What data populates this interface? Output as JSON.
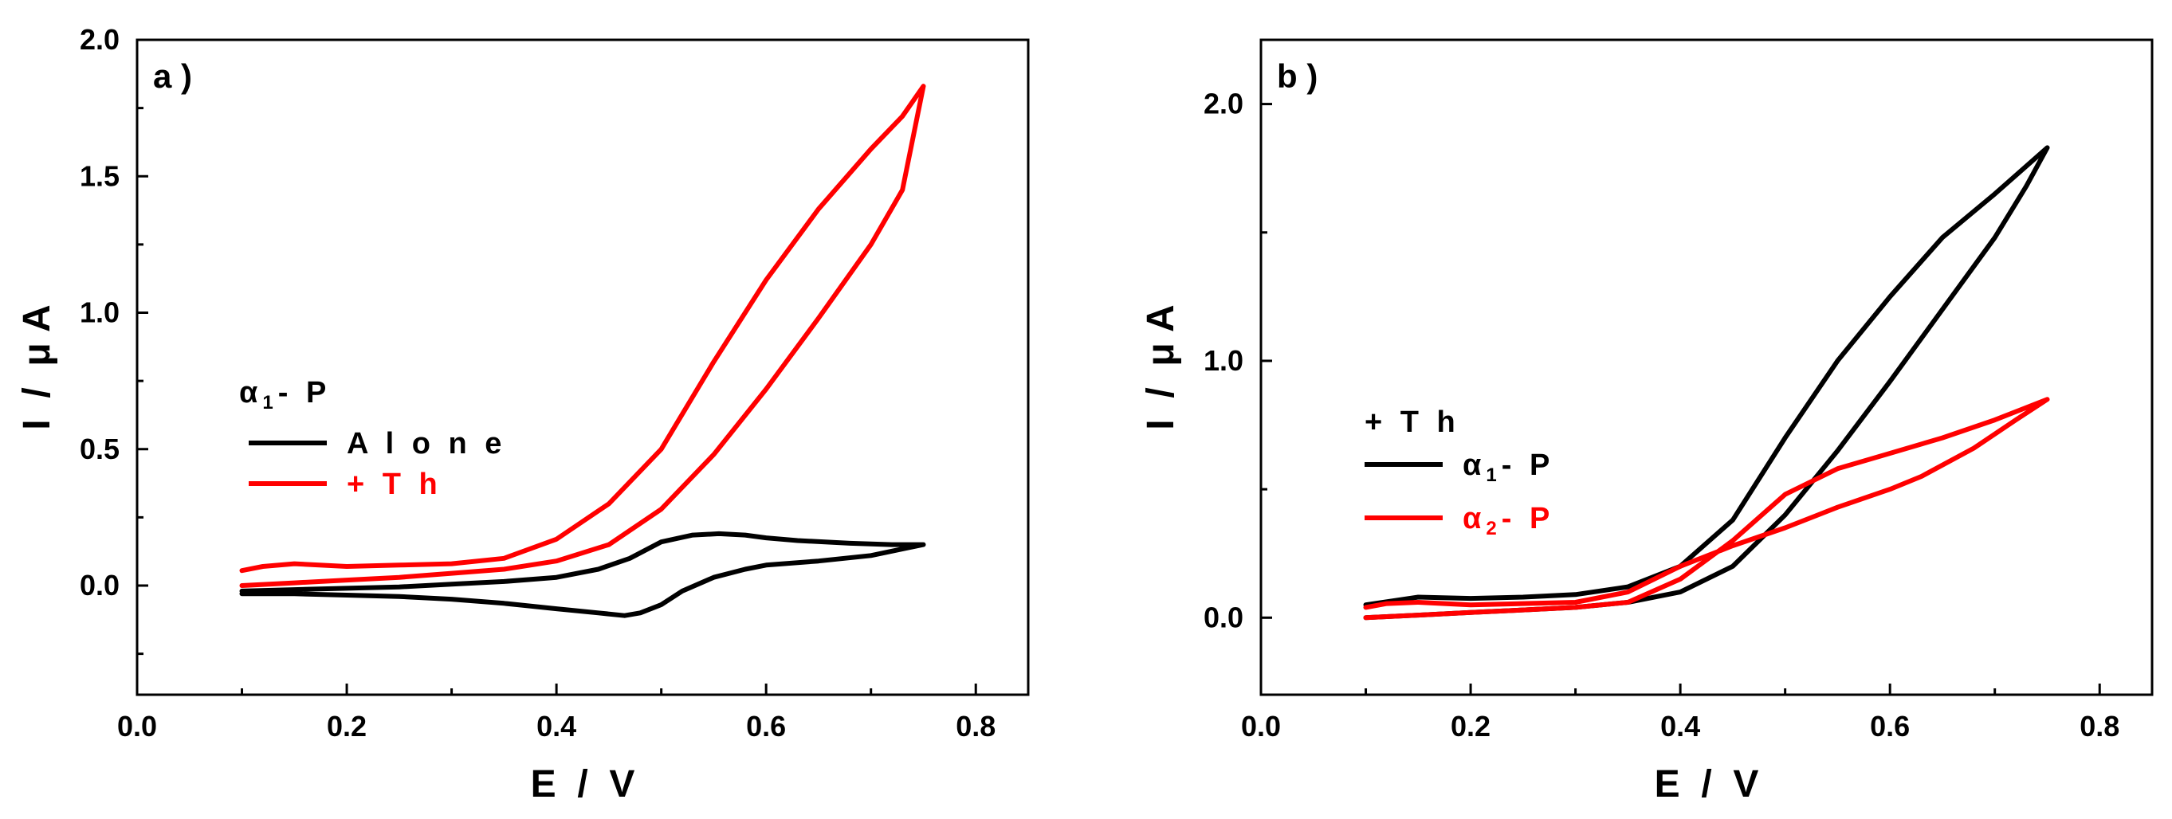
{
  "chart_data": [
    {
      "type": "line",
      "panel_label": "a )",
      "xlabel": "E  /  V",
      "ylabel": "I  /  μ A",
      "xlim": [
        0.0,
        0.85
      ],
      "ylim": [
        -0.4,
        2.0
      ],
      "x_ticks": [
        0.0,
        0.2,
        0.4,
        0.6,
        0.8
      ],
      "x_tick_labels": [
        "0.0",
        "0.2",
        "0.4",
        "0.6",
        "0.8"
      ],
      "y_ticks": [
        0.0,
        0.5,
        1.0,
        1.5,
        2.0
      ],
      "y_tick_labels": [
        "0.0",
        "0.5",
        "1.0",
        "1.5",
        "2.0"
      ],
      "legend": {
        "title": {
          "greek": "α",
          "sub": "1",
          "rest": "- P"
        },
        "entries": [
          {
            "label": "A l o n e",
            "color": "#000000"
          },
          {
            "label": "+ T h",
            "color": "#ff0000"
          }
        ]
      },
      "series": [
        {
          "name": "Alone",
          "color": "#000000",
          "points": [
            [
              0.1,
              -0.03
            ],
            [
              0.15,
              -0.03
            ],
            [
              0.2,
              -0.035
            ],
            [
              0.25,
              -0.04
            ],
            [
              0.3,
              -0.05
            ],
            [
              0.35,
              -0.065
            ],
            [
              0.4,
              -0.085
            ],
            [
              0.44,
              -0.1
            ],
            [
              0.465,
              -0.11
            ],
            [
              0.48,
              -0.1
            ],
            [
              0.5,
              -0.07
            ],
            [
              0.52,
              -0.02
            ],
            [
              0.55,
              0.03
            ],
            [
              0.58,
              0.06
            ],
            [
              0.6,
              0.075
            ],
            [
              0.65,
              0.09
            ],
            [
              0.7,
              0.11
            ],
            [
              0.75,
              0.15
            ],
            [
              0.72,
              0.15
            ],
            [
              0.68,
              0.155
            ],
            [
              0.63,
              0.165
            ],
            [
              0.6,
              0.175
            ],
            [
              0.58,
              0.185
            ],
            [
              0.555,
              0.19
            ],
            [
              0.53,
              0.185
            ],
            [
              0.5,
              0.16
            ],
            [
              0.47,
              0.1
            ],
            [
              0.44,
              0.06
            ],
            [
              0.4,
              0.03
            ],
            [
              0.35,
              0.015
            ],
            [
              0.3,
              0.005
            ],
            [
              0.25,
              -0.005
            ],
            [
              0.2,
              -0.01
            ],
            [
              0.15,
              -0.015
            ],
            [
              0.1,
              -0.02
            ]
          ]
        },
        {
          "name": "+ Th",
          "color": "#ff0000",
          "points": [
            [
              0.1,
              0.0
            ],
            [
              0.15,
              0.01
            ],
            [
              0.2,
              0.02
            ],
            [
              0.25,
              0.03
            ],
            [
              0.3,
              0.045
            ],
            [
              0.35,
              0.06
            ],
            [
              0.4,
              0.09
            ],
            [
              0.45,
              0.15
            ],
            [
              0.5,
              0.28
            ],
            [
              0.55,
              0.48
            ],
            [
              0.6,
              0.72
            ],
            [
              0.65,
              0.98
            ],
            [
              0.7,
              1.25
            ],
            [
              0.73,
              1.45
            ],
            [
              0.75,
              1.83
            ],
            [
              0.73,
              1.72
            ],
            [
              0.7,
              1.6
            ],
            [
              0.65,
              1.38
            ],
            [
              0.6,
              1.12
            ],
            [
              0.55,
              0.82
            ],
            [
              0.5,
              0.5
            ],
            [
              0.45,
              0.3
            ],
            [
              0.4,
              0.17
            ],
            [
              0.35,
              0.1
            ],
            [
              0.3,
              0.08
            ],
            [
              0.25,
              0.075
            ],
            [
              0.2,
              0.07
            ],
            [
              0.15,
              0.08
            ],
            [
              0.12,
              0.07
            ],
            [
              0.1,
              0.055
            ]
          ]
        }
      ]
    },
    {
      "type": "line",
      "panel_label": "b )",
      "xlabel": "E  /  V",
      "ylabel": "I  /  μ A",
      "xlim": [
        0.0,
        0.85
      ],
      "ylim": [
        -0.3,
        2.25
      ],
      "x_ticks": [
        0.0,
        0.2,
        0.4,
        0.6,
        0.8
      ],
      "x_tick_labels": [
        "0.0",
        "0.2",
        "0.4",
        "0.6",
        "0.8"
      ],
      "y_ticks": [
        0.0,
        1.0,
        2.0
      ],
      "y_tick_labels": [
        "0.0",
        "1.0",
        "2.0"
      ],
      "legend": {
        "title": {
          "text": "+ T h"
        },
        "entries": [
          {
            "greek": "α",
            "sub": "1",
            "rest": "- P",
            "color": "#000000"
          },
          {
            "greek": "α",
            "sub": "2",
            "rest": "- P",
            "color": "#ff0000"
          }
        ]
      },
      "series": [
        {
          "name": "α1-P",
          "color": "#000000",
          "points": [
            [
              0.1,
              0.05
            ],
            [
              0.15,
              0.08
            ],
            [
              0.2,
              0.075
            ],
            [
              0.25,
              0.08
            ],
            [
              0.3,
              0.09
            ],
            [
              0.35,
              0.12
            ],
            [
              0.4,
              0.2
            ],
            [
              0.45,
              0.38
            ],
            [
              0.5,
              0.7
            ],
            [
              0.55,
              1.0
            ],
            [
              0.6,
              1.25
            ],
            [
              0.65,
              1.48
            ],
            [
              0.7,
              1.65
            ],
            [
              0.75,
              1.83
            ],
            [
              0.73,
              1.68
            ],
            [
              0.7,
              1.48
            ],
            [
              0.65,
              1.2
            ],
            [
              0.6,
              0.92
            ],
            [
              0.55,
              0.65
            ],
            [
              0.5,
              0.4
            ],
            [
              0.45,
              0.2
            ],
            [
              0.4,
              0.1
            ],
            [
              0.35,
              0.06
            ],
            [
              0.3,
              0.04
            ],
            [
              0.25,
              0.03
            ],
            [
              0.2,
              0.02
            ],
            [
              0.15,
              0.01
            ],
            [
              0.1,
              0.0
            ]
          ]
        },
        {
          "name": "α2-P",
          "color": "#ff0000",
          "points": [
            [
              0.1,
              0.0
            ],
            [
              0.15,
              0.01
            ],
            [
              0.2,
              0.02
            ],
            [
              0.25,
              0.03
            ],
            [
              0.3,
              0.04
            ],
            [
              0.35,
              0.06
            ],
            [
              0.4,
              0.15
            ],
            [
              0.45,
              0.3
            ],
            [
              0.5,
              0.48
            ],
            [
              0.55,
              0.58
            ],
            [
              0.6,
              0.64
            ],
            [
              0.65,
              0.7
            ],
            [
              0.7,
              0.77
            ],
            [
              0.75,
              0.85
            ],
            [
              0.72,
              0.77
            ],
            [
              0.68,
              0.66
            ],
            [
              0.63,
              0.55
            ],
            [
              0.6,
              0.5
            ],
            [
              0.55,
              0.43
            ],
            [
              0.5,
              0.35
            ],
            [
              0.45,
              0.28
            ],
            [
              0.4,
              0.2
            ],
            [
              0.35,
              0.1
            ],
            [
              0.3,
              0.06
            ],
            [
              0.25,
              0.055
            ],
            [
              0.2,
              0.05
            ],
            [
              0.15,
              0.06
            ],
            [
              0.12,
              0.055
            ],
            [
              0.1,
              0.04
            ]
          ]
        }
      ]
    }
  ]
}
